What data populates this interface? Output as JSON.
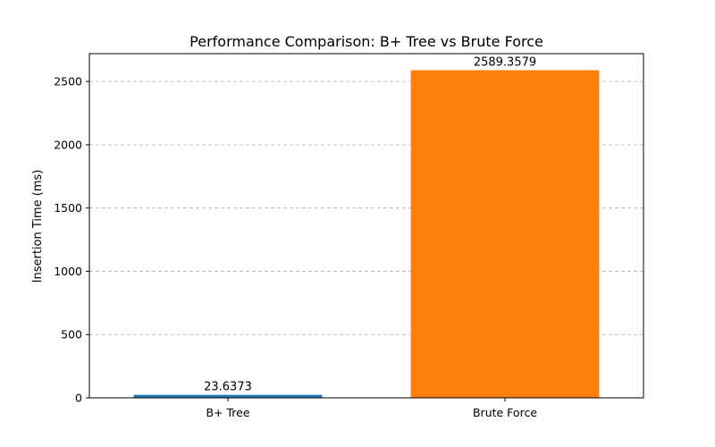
{
  "chart_data": {
    "type": "bar",
    "title": "Performance Comparison: B+ Tree vs Brute Force",
    "xlabel": "",
    "ylabel": "Insertion Time (ms)",
    "categories": [
      "B+ Tree",
      "Brute Force"
    ],
    "values": [
      23.6373,
      2589.3579
    ],
    "data_labels": [
      "23.6373",
      "2589.3579"
    ],
    "colors": [
      "#1f77b4",
      "#ff7f0e"
    ],
    "ylim": [
      0,
      2720
    ],
    "yticks": [
      0,
      500,
      1000,
      1500,
      2000,
      2500
    ],
    "grid": "y-axis dashed",
    "legend": "none"
  }
}
